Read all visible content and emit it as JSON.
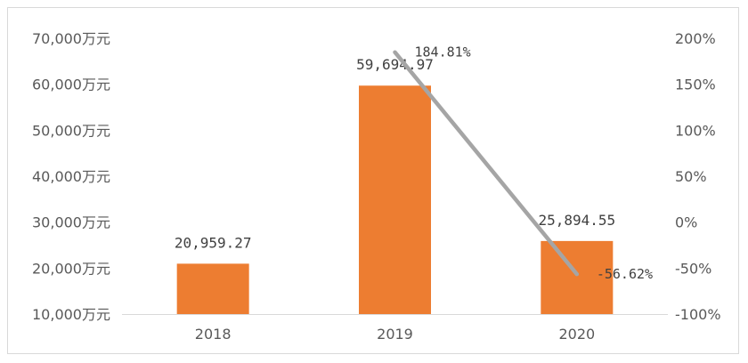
{
  "chart_data": {
    "type": "bar",
    "title": "",
    "xlabel": "",
    "ylabel": "",
    "categories": [
      "2018",
      "2019",
      "2020"
    ],
    "series": [
      {
        "type": "bar",
        "values": [
          20959.27,
          59694.97,
          25894.55
        ],
        "labels": [
          "20,959.27",
          "59,694.97",
          "25,894.55"
        ],
        "color": "#ED7D31",
        "axis": "left"
      },
      {
        "type": "line",
        "values": [
          null,
          184.81,
          -56.62
        ],
        "labels": [
          "",
          "184.81%",
          "-56.62%"
        ],
        "color": "#A5A5A5",
        "axis": "right"
      }
    ],
    "left_axis": {
      "ylim": [
        10000,
        70000
      ],
      "ticks": [
        10000,
        20000,
        30000,
        40000,
        50000,
        60000,
        70000
      ],
      "tick_labels": [
        "10,000万元",
        "20,000万元",
        "30,000万元",
        "40,000万元",
        "50,000万元",
        "60,000万元",
        "70,000万元"
      ]
    },
    "right_axis": {
      "ylim": [
        -100,
        200
      ],
      "ticks": [
        -100,
        -50,
        0,
        50,
        100,
        150,
        200
      ],
      "tick_labels": [
        "-100%",
        "-50%",
        "0%",
        "50%",
        "100%",
        "150%",
        "200%"
      ]
    },
    "grid": false,
    "legend": "none"
  }
}
